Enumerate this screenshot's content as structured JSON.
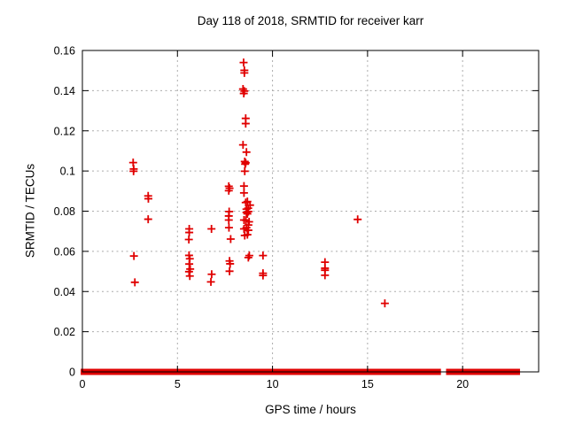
{
  "chart_data": {
    "type": "scatter",
    "title": "Day 118 of 2018, SRMTID for receiver karr",
    "xlabel": "GPS time / hours",
    "ylabel": "SRMTID / TECUs",
    "xlim": [
      0,
      24
    ],
    "ylim": [
      0,
      0.16
    ],
    "xtick_values": [
      0,
      5,
      10,
      15,
      20
    ],
    "xtick_labels": [
      "0",
      "5",
      "10",
      "15",
      "20"
    ],
    "ytick_values": [
      0,
      0.02,
      0.04,
      0.06,
      0.08,
      0.1,
      0.12,
      0.14,
      0.16
    ],
    "ytick_labels": [
      "0",
      "0.02",
      "0.04",
      "0.06",
      "0.08",
      "0.1",
      "0.12",
      "0.14",
      "0.16"
    ],
    "grid": true,
    "legend": "none",
    "marker": "plus",
    "marker_color": "#e00000",
    "grid_color": "#ababab",
    "axis_color": "#000000",
    "points": [
      [
        2.67,
        0.1042
      ],
      [
        2.7,
        0.101
      ],
      [
        2.69,
        0.0999
      ],
      [
        2.71,
        0.0577
      ],
      [
        2.76,
        0.0446
      ],
      [
        3.46,
        0.0876
      ],
      [
        3.47,
        0.0862
      ],
      [
        3.46,
        0.076
      ],
      [
        5.62,
        0.0712
      ],
      [
        5.62,
        0.0694
      ],
      [
        5.6,
        0.0659
      ],
      [
        5.61,
        0.058
      ],
      [
        5.65,
        0.0563
      ],
      [
        5.62,
        0.0537
      ],
      [
        5.67,
        0.0512
      ],
      [
        5.61,
        0.0499
      ],
      [
        5.65,
        0.0477
      ],
      [
        6.79,
        0.0712
      ],
      [
        6.8,
        0.0486
      ],
      [
        6.76,
        0.0448
      ],
      [
        7.7,
        0.0924
      ],
      [
        7.74,
        0.0914
      ],
      [
        7.7,
        0.0902
      ],
      [
        7.72,
        0.0798
      ],
      [
        7.7,
        0.0776
      ],
      [
        7.7,
        0.0756
      ],
      [
        7.71,
        0.0718
      ],
      [
        7.8,
        0.0661
      ],
      [
        7.74,
        0.0552
      ],
      [
        7.77,
        0.0538
      ],
      [
        7.74,
        0.0501
      ],
      [
        8.48,
        0.154
      ],
      [
        8.52,
        0.1501
      ],
      [
        8.52,
        0.1488
      ],
      [
        8.45,
        0.1408
      ],
      [
        8.52,
        0.1398
      ],
      [
        8.49,
        0.1386
      ],
      [
        8.59,
        0.1262
      ],
      [
        8.59,
        0.1236
      ],
      [
        8.45,
        0.113
      ],
      [
        8.63,
        0.1094
      ],
      [
        8.54,
        0.1047
      ],
      [
        8.59,
        0.1041
      ],
      [
        8.56,
        0.1034
      ],
      [
        8.54,
        0.0999
      ],
      [
        8.5,
        0.0925
      ],
      [
        8.5,
        0.0891
      ],
      [
        8.68,
        0.0848
      ],
      [
        8.59,
        0.0843
      ],
      [
        8.82,
        0.083
      ],
      [
        8.72,
        0.0815
      ],
      [
        8.63,
        0.081
      ],
      [
        8.73,
        0.0798
      ],
      [
        8.63,
        0.0794
      ],
      [
        8.68,
        0.0787
      ],
      [
        8.5,
        0.0756
      ],
      [
        8.6,
        0.0755
      ],
      [
        8.77,
        0.0747
      ],
      [
        8.73,
        0.0731
      ],
      [
        8.63,
        0.0718
      ],
      [
        8.5,
        0.0712
      ],
      [
        8.73,
        0.0705
      ],
      [
        8.68,
        0.0683
      ],
      [
        8.54,
        0.0679
      ],
      [
        8.78,
        0.0579
      ],
      [
        8.73,
        0.0569
      ],
      [
        9.5,
        0.0579
      ],
      [
        9.5,
        0.0491
      ],
      [
        9.5,
        0.048
      ],
      [
        12.76,
        0.0546
      ],
      [
        12.76,
        0.0516
      ],
      [
        12.76,
        0.0506
      ],
      [
        12.76,
        0.0481
      ],
      [
        14.48,
        0.0759
      ],
      [
        15.91,
        0.0341
      ]
    ],
    "zero_band_value": 0,
    "zero_band_segments": [
      [
        0.05,
        5.95
      ],
      [
        6.15,
        7.72
      ],
      [
        7.88,
        9.72
      ],
      [
        9.96,
        10.98
      ],
      [
        11.13,
        12.93
      ],
      [
        13.08,
        15.18
      ],
      [
        15.33,
        15.72
      ],
      [
        15.87,
        17.42
      ],
      [
        17.65,
        18.17
      ],
      [
        18.3,
        18.48
      ],
      [
        18.6,
        18.72
      ],
      [
        19.27,
        19.4
      ],
      [
        19.47,
        19.57
      ],
      [
        19.63,
        19.8
      ],
      [
        19.88,
        20.1
      ],
      [
        20.2,
        21.4
      ],
      [
        21.5,
        22.88
      ]
    ]
  }
}
